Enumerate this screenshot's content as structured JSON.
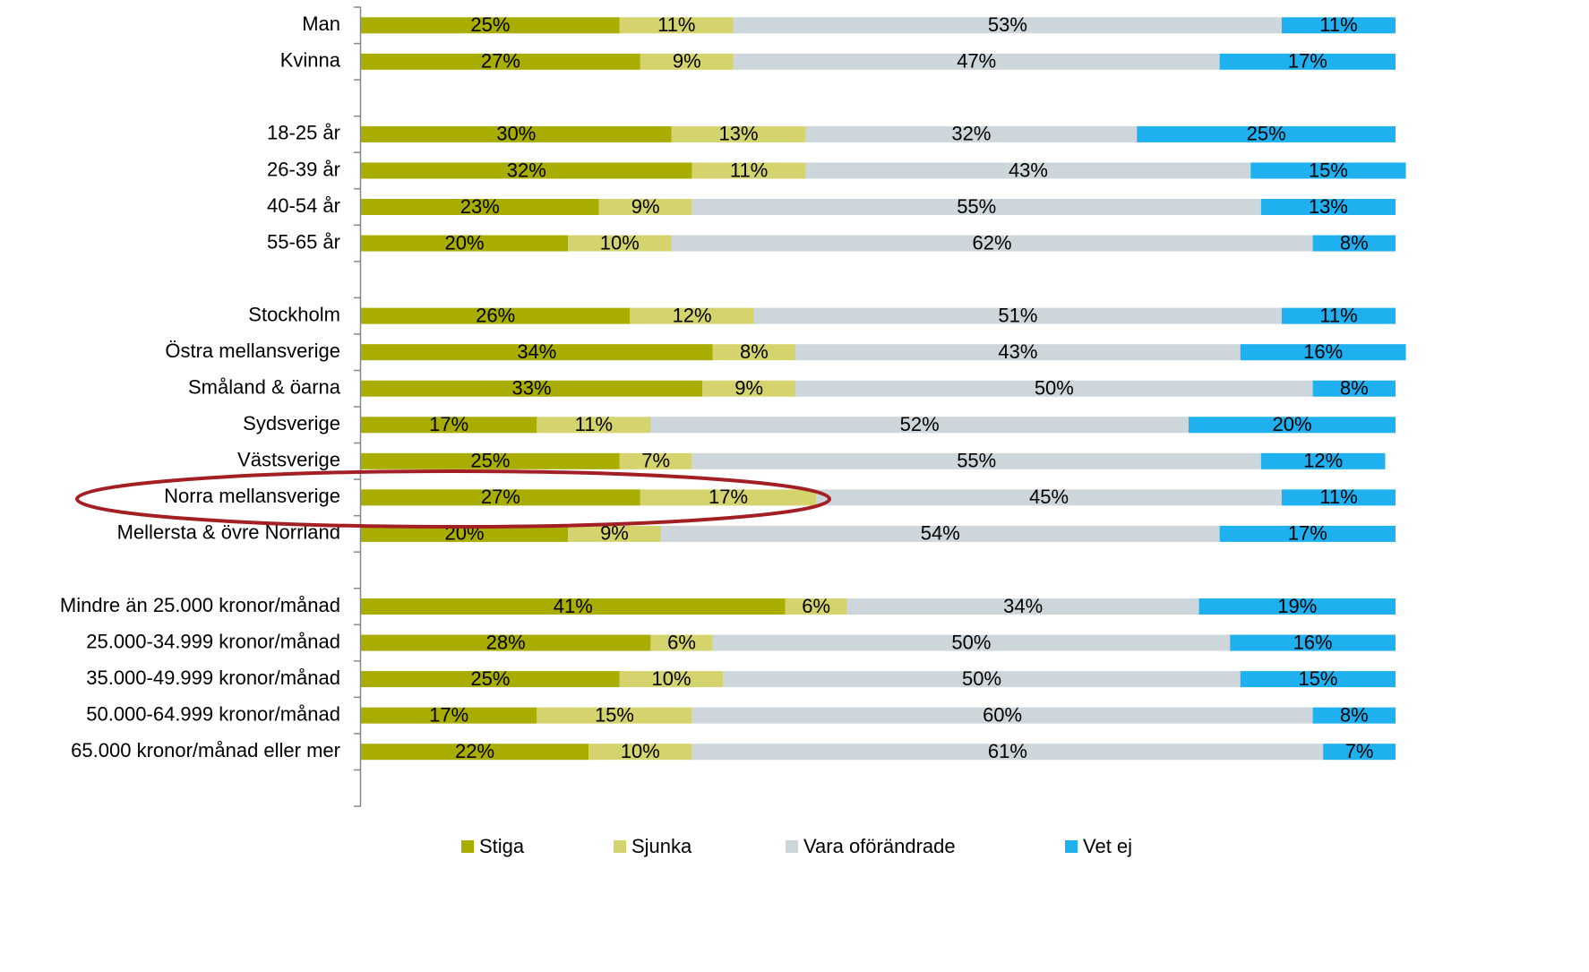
{
  "chart_data": {
    "type": "stacked_bar_horizontal",
    "categories": [
      "Man",
      "Kvinna",
      null,
      "18-25 år",
      "26-39 år",
      "40-54 år",
      "55-65 år",
      null,
      "Stockholm",
      "Östra mellansverige",
      "Småland & öarna",
      "Sydsverige",
      "Västsverige",
      "Norra mellansverige",
      "Mellersta & övre Norrland",
      null,
      "Mindre än 25.000 kronor/månad",
      "25.000-34.999 kronor/månad",
      "35.000-49.999 kronor/månad",
      "50.000-64.999 kronor/månad",
      "65.000 kronor/månad eller mer",
      null
    ],
    "series": [
      {
        "name": "Stiga",
        "color": "#a8ad00",
        "values": [
          25,
          27,
          null,
          30,
          32,
          23,
          20,
          null,
          26,
          34,
          33,
          17,
          25,
          27,
          20,
          null,
          41,
          28,
          25,
          17,
          22,
          null
        ],
        "value_labels": [
          "25%",
          "27%",
          null,
          "30%",
          "32%",
          "23%",
          "20%",
          null,
          "26%",
          "34%",
          "33%",
          "17%",
          "25%",
          "27%",
          "20%",
          null,
          "41%",
          "28%",
          "25%",
          "17%",
          "22%",
          null
        ]
      },
      {
        "name": "Sjunka",
        "color": "#d4d36e",
        "values": [
          11,
          9,
          null,
          13,
          11,
          9,
          10,
          null,
          12,
          8,
          9,
          11,
          7,
          17,
          9,
          null,
          6,
          6,
          10,
          15,
          10,
          null
        ],
        "value_labels": [
          "11%",
          "9%",
          null,
          "13%",
          "11%",
          "9%",
          "10%",
          null,
          "12%",
          "8%",
          "9%",
          "11%",
          "7%",
          "17%",
          "9%",
          null,
          "6%",
          "6%",
          "10%",
          "15%",
          "10%",
          null
        ]
      },
      {
        "name": "Vara oförändrade",
        "color": "#cdd6db",
        "values": [
          53,
          47,
          null,
          32,
          43,
          55,
          62,
          null,
          51,
          43,
          50,
          52,
          55,
          45,
          54,
          null,
          34,
          50,
          50,
          60,
          61,
          null
        ],
        "value_labels": [
          "53%",
          "47%",
          null,
          "32%",
          "43%",
          "55%",
          "62%",
          null,
          "51%",
          "43%",
          "50%",
          "52%",
          "55%",
          "45%",
          "54%",
          null,
          "34%",
          "50%",
          "50%",
          "60%",
          "61%",
          null
        ]
      },
      {
        "name": "Vet ej",
        "color": "#1fb0f0",
        "values": [
          11,
          17,
          null,
          25,
          15,
          13,
          8,
          null,
          11,
          16,
          8,
          20,
          12,
          11,
          17,
          null,
          19,
          16,
          15,
          8,
          7,
          null
        ],
        "value_labels": [
          "11%",
          "17%",
          null,
          "25%",
          "15%",
          "13%",
          "8%",
          null,
          "11%",
          "16%",
          "8%",
          "20%",
          "12%",
          "11%",
          "17%",
          null,
          "19%",
          "16%",
          "15%",
          "8%",
          "7%",
          null
        ]
      }
    ],
    "xlim": [
      0,
      100
    ],
    "legend": "bottom"
  }
}
